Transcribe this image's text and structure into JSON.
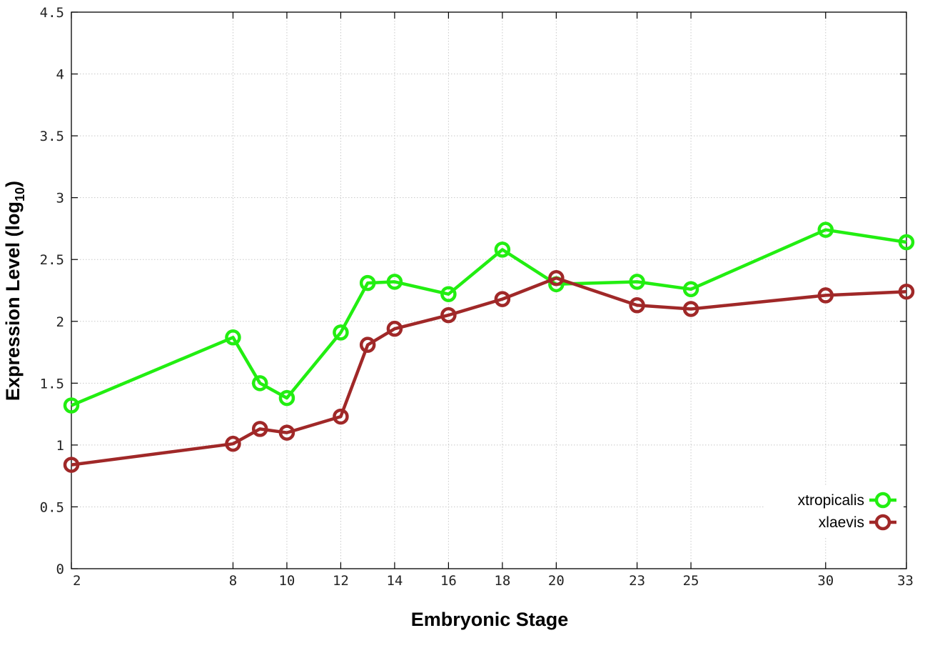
{
  "chart_data": {
    "type": "line",
    "xlabel": "Embryonic Stage",
    "ylabel_main": "Expression Level (log",
    "ylabel_sub": "10",
    "ylabel_close": ")",
    "x_ticks": [
      2,
      8,
      10,
      12,
      14,
      16,
      18,
      20,
      23,
      25,
      30,
      33
    ],
    "y_ticks": [
      {
        "value": 0,
        "label": "0"
      },
      {
        "value": 0.5,
        "label": "0.5"
      },
      {
        "value": 1,
        "label": "1"
      },
      {
        "value": 1.5,
        "label": "1.5"
      },
      {
        "value": 2,
        "label": "2"
      },
      {
        "value": 2.5,
        "label": "2.5"
      },
      {
        "value": 3,
        "label": "3"
      },
      {
        "value": 3.5,
        "label": "3.5"
      },
      {
        "value": 4,
        "label": "4"
      },
      {
        "value": 4.5,
        "label": "4.5"
      }
    ],
    "xlim": [
      2,
      33
    ],
    "ylim": [
      0,
      4.5
    ],
    "grid": true,
    "legend_position": "bottom-right",
    "x": [
      2,
      8,
      9,
      10,
      12,
      13,
      14,
      16,
      18,
      20,
      23,
      25,
      30,
      33
    ],
    "series": [
      {
        "name": "xtropicalis",
        "color": "#22ee11",
        "values": [
          1.32,
          1.87,
          1.5,
          1.38,
          1.91,
          2.31,
          2.32,
          2.22,
          2.58,
          2.3,
          2.32,
          2.26,
          2.74,
          2.64
        ]
      },
      {
        "name": "xlaevis",
        "color": "#a02828",
        "values": [
          0.84,
          1.01,
          1.13,
          1.1,
          1.23,
          1.81,
          1.94,
          2.05,
          2.18,
          2.35,
          2.13,
          2.1,
          2.21,
          2.24
        ]
      }
    ]
  }
}
